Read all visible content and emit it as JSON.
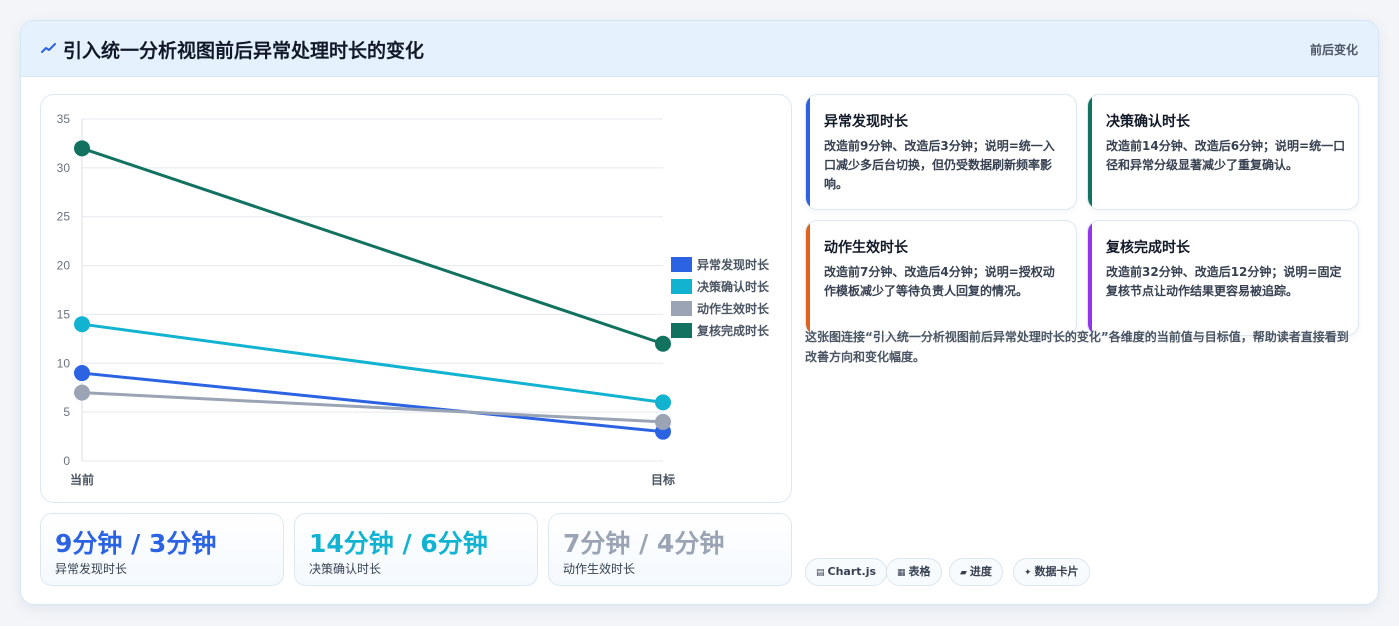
{
  "header": {
    "title": "引入统一分析视图前后异常处理时长的变化",
    "badge": "前后变化",
    "icon": "sparkline-icon"
  },
  "colors": {
    "blue": "#2b63e3",
    "cyan": "#12b3d1",
    "gray": "#9aa4b5",
    "teal": "#11725f",
    "orange": "#e0621c",
    "purple": "#9333ea"
  },
  "chart_data": {
    "type": "line",
    "categories": [
      "当前",
      "目标"
    ],
    "series": [
      {
        "name": "异常发现时长",
        "values": [
          9,
          3
        ],
        "color": "#2b63e3"
      },
      {
        "name": "决策确认时长",
        "values": [
          14,
          6
        ],
        "color": "#12b3d1"
      },
      {
        "name": "动作生效时长",
        "values": [
          7,
          4
        ],
        "color": "#9aa4b5"
      },
      {
        "name": "复核完成时长",
        "values": [
          32,
          12
        ],
        "color": "#11725f"
      }
    ],
    "ylim": [
      0,
      35
    ],
    "yticks": [
      0,
      5,
      10,
      15,
      20,
      25,
      30,
      35
    ],
    "grid": true,
    "legend": "right"
  },
  "kpis": [
    {
      "value": "9分钟 / 3分钟",
      "label": "异常发现时长",
      "color": "#2b63e3"
    },
    {
      "value": "14分钟 / 6分钟",
      "label": "决策确认时长",
      "color": "#12b3d1"
    },
    {
      "value": "7分钟 / 4分钟",
      "label": "动作生效时长",
      "color": "#9aa4b5"
    }
  ],
  "info_cards": [
    {
      "title": "异常发现时长",
      "desc": "改造前9分钟、改造后3分钟；说明=统一入口减少多后台切换，但仍受数据刷新频率影响。",
      "color": "#2b63e3"
    },
    {
      "title": "决策确认时长",
      "desc": "改造前14分钟、改造后6分钟；说明=统一口径和异常分级显著减少了重复确认。",
      "color": "#11725f"
    },
    {
      "title": "动作生效时长",
      "desc": "改造前7分钟、改造后4分钟；说明=授权动作模板减少了等待负责人回复的情况。",
      "color": "#e0621c"
    },
    {
      "title": "复核完成时长",
      "desc": "改造前32分钟、改造后12分钟；说明=固定复核节点让动作结果更容易被追踪。",
      "color": "#9333ea"
    }
  ],
  "summary": "这张图连接“引入统一分析视图前后异常处理时长的变化”各维度的当前值与目标值，帮助读者直接看到改善方向和变化幅度。",
  "tags": [
    {
      "icon": "▤",
      "label": "Chart.js"
    },
    {
      "icon": "▦",
      "label": "表格"
    },
    {
      "icon": "▰",
      "label": "进度"
    },
    {
      "icon": "✦",
      "label": "数据卡片"
    }
  ]
}
